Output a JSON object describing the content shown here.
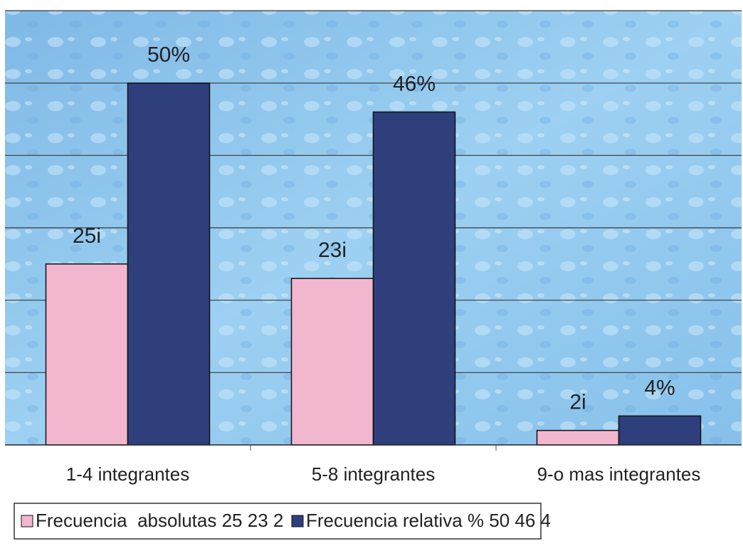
{
  "chart_data": {
    "type": "bar",
    "categories": [
      "1-4  integrantes",
      "5-8 integrantes",
      "9-o mas integrantes"
    ],
    "series": [
      {
        "name": "Frecuencia  absolutas 25 23 2",
        "color": "#f2b6cf",
        "values": [
          25,
          23,
          2
        ],
        "value_labels": [
          "25i",
          "23i",
          "2i"
        ]
      },
      {
        "name": "Frecuencia relativa % 50 46 4",
        "color": "#2f3f7c",
        "values": [
          50,
          46,
          4
        ],
        "value_labels": [
          "50%",
          "46%",
          "4%"
        ]
      }
    ],
    "ylim": [
      0,
      60
    ],
    "yticks": [
      0,
      10,
      20,
      30,
      40,
      50,
      60
    ],
    "grid": true,
    "legend": "bottom"
  }
}
